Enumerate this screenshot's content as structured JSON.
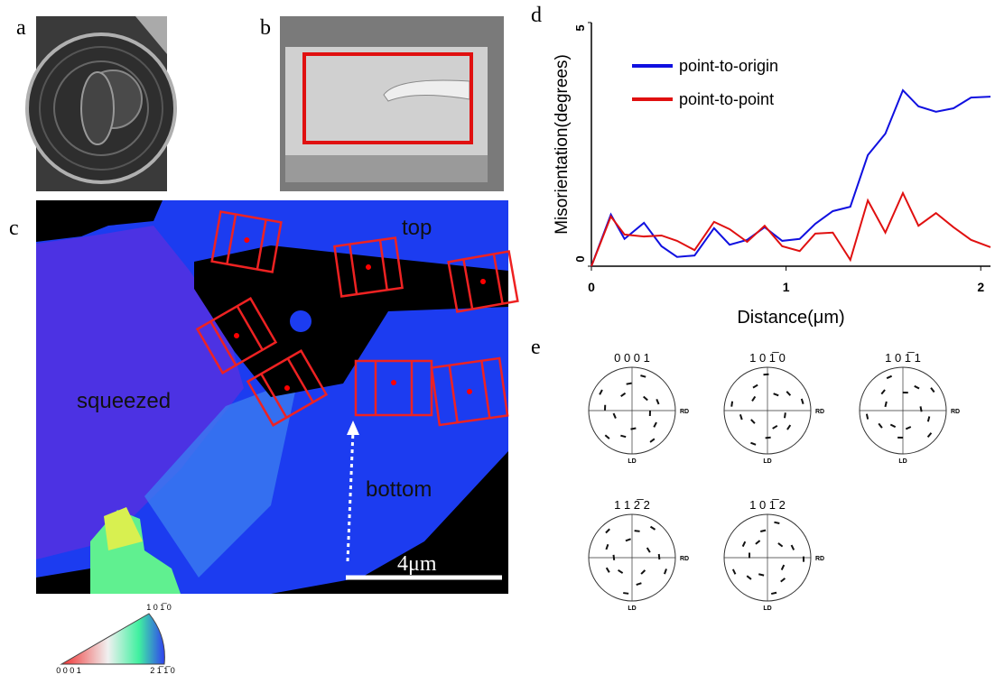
{
  "panel_labels": [
    "a",
    "b",
    "c",
    "d",
    "e"
  ],
  "map_labels": {
    "top": "top",
    "squeezed": "squeezed",
    "bottom": "bottom",
    "scale_bar": "4μm"
  },
  "color_key": [
    "1 0 1̅ 0",
    "0 0 0 1",
    "2 1̅ 1̅ 0"
  ],
  "chart_data": {
    "type": "line",
    "x_label": "Distance(μm)",
    "y_label": "Misorientation(degrees)",
    "x": [
      0,
      0.1,
      0.17,
      0.27,
      0.36,
      0.44,
      0.53,
      0.63,
      0.71,
      0.8,
      0.89,
      0.98,
      1.07,
      1.15,
      1.24,
      1.33,
      1.42,
      1.51,
      1.6,
      1.68,
      1.77,
      1.86,
      1.95,
      2.05
    ],
    "series": [
      {
        "name": "point-to-origin",
        "color": "#1010e0",
        "values": [
          0,
          1.06,
          0.56,
          0.89,
          0.41,
          0.19,
          0.22,
          0.78,
          0.44,
          0.54,
          0.8,
          0.52,
          0.56,
          0.87,
          1.13,
          1.22,
          2.28,
          2.72,
          3.61,
          3.28,
          3.17,
          3.24,
          3.46,
          3.48
        ]
      },
      {
        "name": "point-to-point",
        "color": "#e01010",
        "values": [
          0,
          1.02,
          0.65,
          0.61,
          0.63,
          0.52,
          0.33,
          0.91,
          0.76,
          0.5,
          0.83,
          0.41,
          0.31,
          0.67,
          0.69,
          0.13,
          1.35,
          0.69,
          1.5,
          0.83,
          1.09,
          0.8,
          0.54,
          0.39
        ]
      }
    ],
    "xlim": [
      0,
      2.05
    ],
    "ylim": [
      0,
      5
    ],
    "xticks": [
      0,
      1,
      2
    ],
    "yticks": [
      0,
      5
    ],
    "legend": "upper left"
  },
  "pole_figures": [
    {
      "title": "0 0 0 1",
      "rd": "RD",
      "ld": "LD"
    },
    {
      "title": "1 0 1̅ 0",
      "rd": "RD",
      "ld": "LD"
    },
    {
      "title": "1 0 1̅ 1",
      "rd": "RD",
      "ld": "LD"
    },
    {
      "title": "1 1 2̅ 2",
      "rd": "RD",
      "ld": "LD"
    },
    {
      "title": "1 0 1̅ 2",
      "rd": "RD",
      "ld": "LD"
    }
  ]
}
